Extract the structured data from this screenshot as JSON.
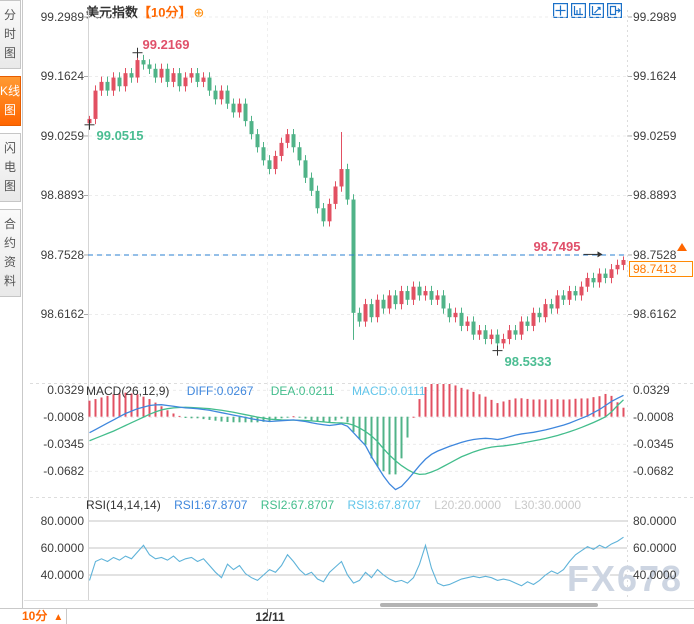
{
  "sidebar": {
    "tabs": [
      {
        "label": "分时图",
        "active": false
      },
      {
        "label": "K线图",
        "active": true
      },
      {
        "label": "闪电图",
        "active": false
      },
      {
        "label": "合约资料",
        "active": false
      }
    ]
  },
  "header": {
    "title": "美元指数",
    "timeframe": "【10分】",
    "expand_icon": "⊕",
    "toolbar_icons": [
      "crosshair-icon",
      "y-axis-scale-icon",
      "x-axis-scale-icon",
      "pan-right-icon"
    ]
  },
  "price_axis": {
    "labels": [
      "99.2989",
      "99.1624",
      "99.0259",
      "98.8893",
      "98.7528",
      "98.6162"
    ],
    "values": [
      99.2989,
      99.1624,
      99.0259,
      98.8893,
      98.7528,
      98.6162
    ]
  },
  "price_tag": {
    "value": "98.7413"
  },
  "reference_line": {
    "value": 98.7528
  },
  "annotations": [
    {
      "text": "99.2169",
      "value": 99.2169,
      "index": 8,
      "color": "up",
      "placement": "above"
    },
    {
      "text": "99.0515",
      "value": 99.0515,
      "index": 0,
      "color": "down",
      "placement": "below"
    },
    {
      "text": "98.7495",
      "value": 98.7495,
      "index": 86,
      "color": "up",
      "placement": "left"
    },
    {
      "text": "98.5333",
      "value": 98.5333,
      "index": 68,
      "color": "down",
      "placement": "below"
    }
  ],
  "macd_header": {
    "label": "MACD(26,12,9)",
    "diff_label": "DIFF:0.0267",
    "dea_label": "DEA:0.0211",
    "macd_label": "MACD:0.0111",
    "axis_labels": [
      "0.0329",
      "-0.0008",
      "-0.0345",
      "-0.0682"
    ],
    "axis_values": [
      0.0329,
      -0.0008,
      -0.0345,
      -0.0682
    ]
  },
  "rsi_header": {
    "label": "RSI(14,14,14)",
    "rsi1_label": "RSI1:67.8707",
    "rsi2_label": "RSI2:67.8707",
    "rsi3_label": "RSI3:67.8707",
    "l20_label": "L20:20.0000",
    "l30_label": "L30:30.0000",
    "axis_labels": [
      "80.0000",
      "60.0000",
      "40.0000"
    ],
    "axis_values": [
      80,
      60,
      40
    ]
  },
  "bottom_bar": {
    "timeframe": "10分",
    "arrow": "▲",
    "date": "12/11"
  },
  "watermark": "FX678",
  "colors": {
    "accent": "#ff6600",
    "up": "#e25062",
    "down": "#50b388",
    "up_text": "#e0506a",
    "down_text": "#4bbd92",
    "diff_blue": "#3f87dd",
    "dea_green": "#43bd8c",
    "macd_cyan": "#61c5ea",
    "rsi_line": "#5fb3d9",
    "ref_line_blue": "#2a7fd0",
    "toolbar_blue": "#1a70c8",
    "grid": "#ececec",
    "grid_solid": "#c4c4c4"
  },
  "chart_data": {
    "type": "candlestick",
    "title": "美元指数 10分",
    "x_axis_date": "12/11",
    "ylim": [
      98.475,
      99.315
    ],
    "open_first": 99.055,
    "wick": 0.012,
    "closes": [
      99.065,
      99.13,
      99.15,
      99.13,
      99.16,
      99.14,
      99.17,
      99.16,
      99.2,
      99.19,
      99.18,
      99.16,
      99.18,
      99.15,
      99.17,
      99.14,
      99.16,
      99.17,
      99.15,
      99.16,
      99.13,
      99.11,
      99.13,
      99.1,
      99.08,
      99.1,
      99.06,
      99.03,
      99.0,
      98.97,
      98.95,
      98.98,
      99.01,
      99.03,
      99.0,
      98.97,
      98.93,
      98.9,
      98.86,
      98.83,
      98.87,
      98.91,
      98.95,
      98.88,
      98.62,
      98.6,
      98.64,
      98.61,
      98.65,
      98.63,
      98.66,
      98.64,
      98.67,
      98.65,
      98.68,
      98.66,
      98.67,
      98.65,
      98.66,
      98.63,
      98.61,
      98.62,
      98.59,
      98.6,
      98.57,
      98.58,
      98.56,
      98.57,
      98.55,
      98.56,
      98.58,
      98.57,
      98.6,
      98.59,
      98.62,
      98.61,
      98.64,
      98.63,
      98.66,
      98.65,
      98.67,
      98.66,
      98.68,
      98.7,
      98.69,
      98.71,
      98.7,
      98.72,
      98.73,
      98.7413
    ],
    "overrides": {
      "high": {
        "0": 99.072,
        "8": 99.2169,
        "42": 99.035,
        "89": 98.7495
      },
      "low": {
        "0": 99.0515,
        "44": 98.558,
        "68": 98.5333
      }
    },
    "macd": {
      "params": "26,12,9",
      "diff": [
        -0.02,
        -0.016,
        -0.012,
        -0.008,
        -0.004,
        0.0,
        0.004,
        0.007,
        0.01,
        0.012,
        0.014,
        0.0148,
        0.015,
        0.014,
        0.013,
        0.012,
        0.011,
        0.0105,
        0.01,
        0.009,
        0.008,
        0.0065,
        0.005,
        0.0035,
        0.002,
        0.0005,
        -0.001,
        -0.0025,
        -0.004,
        -0.005,
        -0.006,
        -0.0055,
        -0.005,
        -0.0045,
        -0.004,
        -0.005,
        -0.006,
        -0.0075,
        -0.009,
        -0.01,
        -0.011,
        -0.01,
        -0.009,
        -0.012,
        -0.02,
        -0.028,
        -0.036,
        -0.05,
        -0.062,
        -0.074,
        -0.084,
        -0.091,
        -0.087,
        -0.079,
        -0.07,
        -0.061,
        -0.053,
        -0.047,
        -0.043,
        -0.04,
        -0.037,
        -0.0345,
        -0.032,
        -0.03,
        -0.0285,
        -0.0275,
        -0.027,
        -0.0275,
        -0.0285,
        -0.027,
        -0.025,
        -0.023,
        -0.0215,
        -0.0205,
        -0.0195,
        -0.018,
        -0.0165,
        -0.0145,
        -0.0125,
        -0.0105,
        -0.008,
        -0.005,
        -0.002,
        0.001,
        0.005,
        0.009,
        0.014,
        0.019,
        0.023,
        0.0267
      ],
      "dea": [
        -0.03,
        -0.027,
        -0.024,
        -0.021,
        -0.018,
        -0.0145,
        -0.011,
        -0.0075,
        -0.004,
        -0.0005,
        0.003,
        0.006,
        0.0085,
        0.01,
        0.011,
        0.0115,
        0.0118,
        0.0115,
        0.011,
        0.0105,
        0.01,
        0.009,
        0.008,
        0.0068,
        0.0055,
        0.004,
        0.0025,
        0.001,
        -0.0005,
        -0.0018,
        -0.003,
        -0.0036,
        -0.004,
        -0.0042,
        -0.0043,
        -0.0045,
        -0.0048,
        -0.0052,
        -0.0058,
        -0.0065,
        -0.0072,
        -0.0076,
        -0.0078,
        -0.0085,
        -0.0105,
        -0.014,
        -0.0185,
        -0.024,
        -0.031,
        -0.04,
        -0.048,
        -0.055,
        -0.061,
        -0.066,
        -0.07,
        -0.072,
        -0.0715,
        -0.069,
        -0.066,
        -0.062,
        -0.058,
        -0.054,
        -0.05,
        -0.047,
        -0.044,
        -0.0415,
        -0.0395,
        -0.038,
        -0.037,
        -0.0365,
        -0.0355,
        -0.0344,
        -0.033,
        -0.0316,
        -0.0302,
        -0.0288,
        -0.0272,
        -0.0254,
        -0.0234,
        -0.0212,
        -0.0188,
        -0.0162,
        -0.0134,
        -0.0104,
        -0.0072,
        -0.0038,
        -0.0002,
        0.006,
        0.014,
        0.0211
      ],
      "hist_scale": 2
    },
    "rsi": {
      "params": "14,14,14",
      "values": [
        36,
        50,
        52,
        50,
        53,
        51,
        54,
        52,
        57,
        62,
        55,
        52,
        53,
        51,
        54,
        50,
        52,
        53,
        50,
        52,
        47,
        42,
        38,
        48,
        44,
        47,
        41,
        38,
        36,
        40,
        44,
        42,
        47,
        55,
        50,
        44,
        40,
        42,
        37,
        35,
        42,
        46,
        50,
        40,
        34,
        36,
        42,
        38,
        44,
        40,
        37,
        35,
        36,
        34,
        38,
        48,
        62,
        45,
        34,
        32,
        33,
        35,
        37,
        38,
        39,
        38,
        39,
        38,
        36,
        37,
        36,
        34,
        32,
        35,
        33,
        36,
        40,
        43,
        41,
        44,
        50,
        55,
        58,
        61,
        59,
        62,
        60,
        63,
        65,
        68
      ]
    }
  }
}
